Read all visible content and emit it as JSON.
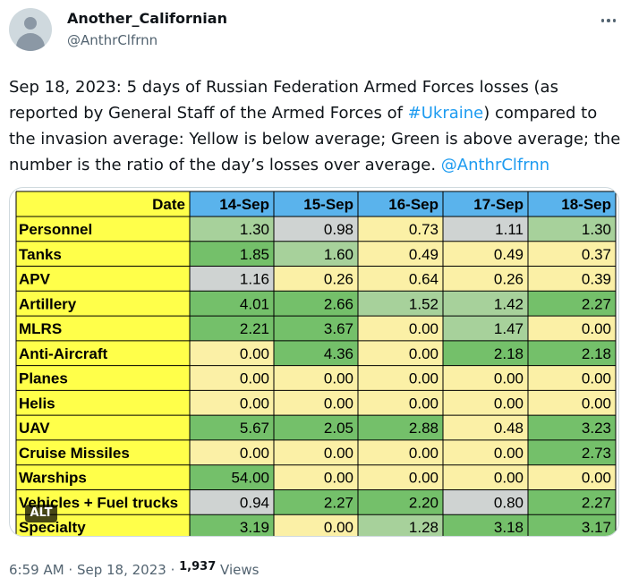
{
  "author": {
    "display_name": "Another_Californian",
    "handle": "@AnthrClfrnn"
  },
  "tweet": {
    "text_before": "Sep 18, 2023: 5 days of Russian Federation Armed Forces losses (as reported by General Staff of the Armed Forces of ",
    "hashtag": "#Ukraine",
    "text_after": ") compared to the invasion average: Yellow is below average; Green is above average; the number is the ratio of the day’s losses over average. ",
    "mention": "@AnthrClfrnn"
  },
  "media": {
    "alt_label": "ALT"
  },
  "meta": {
    "time": "6:59 AM",
    "date": "Sep 18, 2023",
    "views_count": "1,937",
    "views_label": "Views"
  },
  "colors": {
    "yellow": "#ffff4a",
    "blue": "#5ab3ec",
    "cream": "#fbf0a6",
    "light_green": "#a7d19b",
    "green": "#74c06a",
    "gray": "#cfd3d2"
  },
  "table": {
    "corner": "Date",
    "columns": [
      "14-Sep",
      "15-Sep",
      "16-Sep",
      "17-Sep",
      "18-Sep"
    ],
    "rows": [
      {
        "label": "Personnel",
        "values": [
          "1.30",
          "0.98",
          "0.73",
          "1.11",
          "1.30"
        ],
        "fills": [
          "light_green",
          "gray",
          "cream",
          "gray",
          "light_green"
        ]
      },
      {
        "label": "Tanks",
        "values": [
          "1.85",
          "1.60",
          "0.49",
          "0.49",
          "0.37"
        ],
        "fills": [
          "green",
          "light_green",
          "cream",
          "cream",
          "cream"
        ]
      },
      {
        "label": "APV",
        "values": [
          "1.16",
          "0.26",
          "0.64",
          "0.26",
          "0.39"
        ],
        "fills": [
          "gray",
          "cream",
          "cream",
          "cream",
          "cream"
        ]
      },
      {
        "label": "Artillery",
        "values": [
          "4.01",
          "2.66",
          "1.52",
          "1.42",
          "2.27"
        ],
        "fills": [
          "green",
          "green",
          "light_green",
          "light_green",
          "green"
        ]
      },
      {
        "label": "MLRS",
        "values": [
          "2.21",
          "3.67",
          "0.00",
          "1.47",
          "0.00"
        ],
        "fills": [
          "green",
          "green",
          "cream",
          "light_green",
          "cream"
        ]
      },
      {
        "label": "Anti-Aircraft",
        "values": [
          "0.00",
          "4.36",
          "0.00",
          "2.18",
          "2.18"
        ],
        "fills": [
          "cream",
          "green",
          "cream",
          "green",
          "green"
        ]
      },
      {
        "label": "Planes",
        "values": [
          "0.00",
          "0.00",
          "0.00",
          "0.00",
          "0.00"
        ],
        "fills": [
          "cream",
          "cream",
          "cream",
          "cream",
          "cream"
        ]
      },
      {
        "label": "Helis",
        "values": [
          "0.00",
          "0.00",
          "0.00",
          "0.00",
          "0.00"
        ],
        "fills": [
          "cream",
          "cream",
          "cream",
          "cream",
          "cream"
        ]
      },
      {
        "label": "UAV",
        "values": [
          "5.67",
          "2.05",
          "2.88",
          "0.48",
          "3.23"
        ],
        "fills": [
          "green",
          "green",
          "green",
          "cream",
          "green"
        ]
      },
      {
        "label": "Cruise Missiles",
        "values": [
          "0.00",
          "0.00",
          "0.00",
          "0.00",
          "2.73"
        ],
        "fills": [
          "cream",
          "cream",
          "cream",
          "cream",
          "green"
        ]
      },
      {
        "label": "Warships",
        "values": [
          "54.00",
          "0.00",
          "0.00",
          "0.00",
          "0.00"
        ],
        "fills": [
          "green",
          "cream",
          "cream",
          "cream",
          "cream"
        ]
      },
      {
        "label": "Vehicles + Fuel trucks",
        "values": [
          "0.94",
          "2.27",
          "2.20",
          "0.80",
          "2.27"
        ],
        "fills": [
          "gray",
          "green",
          "green",
          "gray",
          "green"
        ]
      },
      {
        "label": "Specialty",
        "values": [
          "3.19",
          "0.00",
          "1.28",
          "3.18",
          "3.17"
        ],
        "fills": [
          "green",
          "cream",
          "light_green",
          "green",
          "green"
        ]
      }
    ]
  }
}
